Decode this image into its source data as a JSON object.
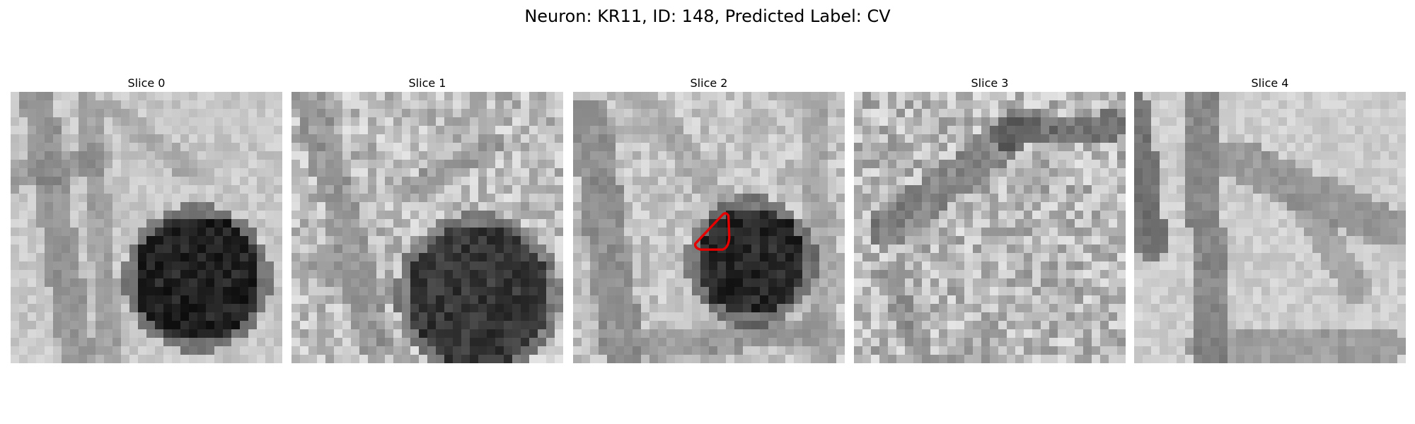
{
  "figure": {
    "title": "Neuron: KR11, ID: 148, Predicted Label: CV"
  },
  "panels": [
    {
      "title": "Slice 0"
    },
    {
      "title": "Slice 1"
    },
    {
      "title": "Slice 2"
    },
    {
      "title": "Slice 3"
    },
    {
      "title": "Slice 4"
    }
  ],
  "annotation": {
    "panel_index": 2,
    "shape": "polygon",
    "stroke_color": "#e60000"
  },
  "colors": {
    "background": "#ffffff",
    "colormap": "grayscale"
  }
}
